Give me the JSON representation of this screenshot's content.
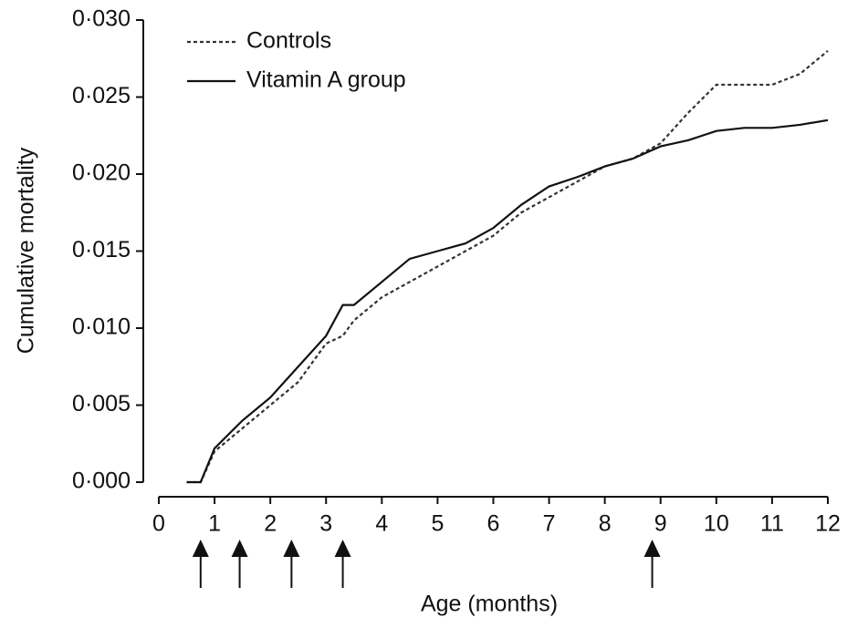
{
  "chart_data": {
    "type": "line",
    "xlabel": "Age (months)",
    "ylabel": "Cumulative mortality",
    "x": [
      0.5,
      0.75,
      1,
      1.5,
      2,
      2.5,
      3,
      3.3,
      3.5,
      4,
      4.5,
      5,
      5.5,
      6,
      6.5,
      7,
      7.5,
      8,
      8.5,
      9,
      9.5,
      10,
      10.5,
      11,
      11.5,
      12
    ],
    "series": [
      {
        "name": "Controls",
        "color": "#333333",
        "dash": true,
        "values": [
          0,
          0,
          0.002,
          0.0035,
          0.005,
          0.0065,
          0.009,
          0.0095,
          0.0105,
          0.012,
          0.013,
          0.014,
          0.015,
          0.016,
          0.0175,
          0.0185,
          0.0195,
          0.0205,
          0.021,
          0.022,
          0.024,
          0.0258,
          0.0258,
          0.0258,
          0.0265,
          0.028
        ]
      },
      {
        "name": "Vitamin A group",
        "color": "#111111",
        "dash": false,
        "values": [
          0,
          0,
          0.0022,
          0.004,
          0.0055,
          0.0075,
          0.0095,
          0.0115,
          0.0115,
          0.013,
          0.0145,
          0.015,
          0.0155,
          0.0165,
          0.018,
          0.0192,
          0.0198,
          0.0205,
          0.021,
          0.0218,
          0.0222,
          0.0228,
          0.023,
          0.023,
          0.0232,
          0.0235
        ]
      }
    ],
    "xlim": [
      0,
      12
    ],
    "xticks": [
      0,
      1,
      2,
      3,
      4,
      5,
      6,
      7,
      8,
      9,
      10,
      11,
      12
    ],
    "ylim": [
      0,
      0.03
    ],
    "yticks": [
      {
        "value": 0,
        "label": "0·000"
      },
      {
        "value": 0.005,
        "label": "0·005"
      },
      {
        "value": 0.01,
        "label": "0·010"
      },
      {
        "value": 0.015,
        "label": "0·015"
      },
      {
        "value": 0.02,
        "label": "0·020"
      },
      {
        "value": 0.025,
        "label": "0·025"
      },
      {
        "value": 0.03,
        "label": "0·030"
      }
    ],
    "arrows_x": [
      0.75,
      1.45,
      2.38,
      3.3,
      8.85
    ],
    "legend": "upper left"
  }
}
